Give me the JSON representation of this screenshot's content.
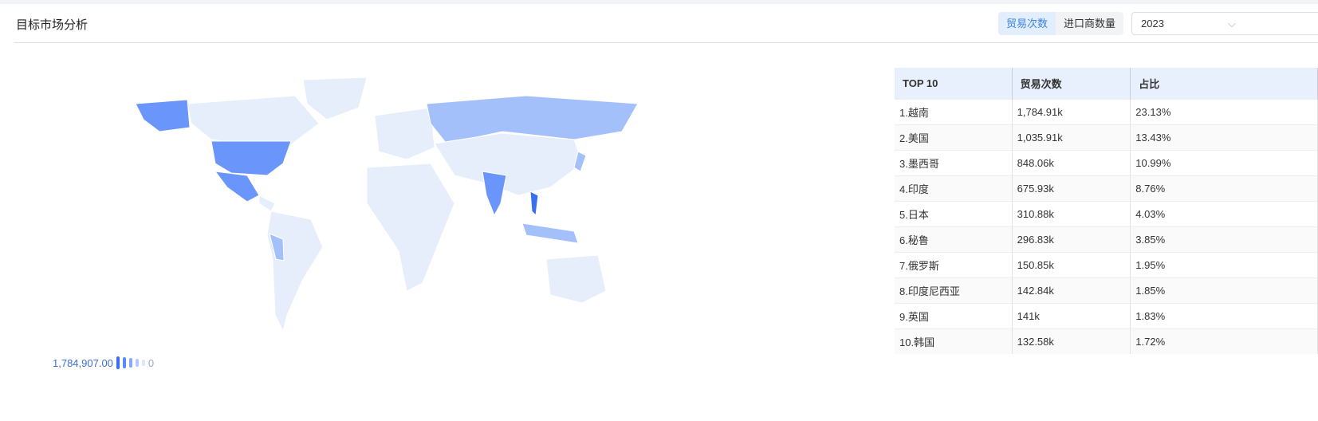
{
  "header": {
    "title": "目标市场分析",
    "tabs": [
      {
        "label": "贸易次数",
        "active": true
      },
      {
        "label": "进口商数量",
        "active": false
      }
    ],
    "year": "2023"
  },
  "table": {
    "headers": [
      "TOP 10",
      "贸易次数",
      "占比"
    ],
    "rows": [
      [
        "1.越南",
        "1,784.91k",
        "23.13%"
      ],
      [
        "2.美国",
        "1,035.91k",
        "13.43%"
      ],
      [
        "3.墨西哥",
        "848.06k",
        "10.99%"
      ],
      [
        "4.印度",
        "675.93k",
        "8.76%"
      ],
      [
        "5.日本",
        "310.88k",
        "4.03%"
      ],
      [
        "6.秘鲁",
        "296.83k",
        "3.85%"
      ],
      [
        "7.俄罗斯",
        "150.85k",
        "1.95%"
      ],
      [
        "8.印度尼西亚",
        "142.84k",
        "1.85%"
      ],
      [
        "9.英国",
        "141k",
        "1.83%"
      ],
      [
        "10.韩国",
        "132.58k",
        "1.72%"
      ]
    ]
  },
  "legend": {
    "max": "1,784,907.00",
    "min": "0"
  },
  "colors": {
    "accent": "#3d82e6",
    "base": "#e6edfb",
    "high": "#5b8ef5",
    "mid": "#a4c0fb"
  }
}
